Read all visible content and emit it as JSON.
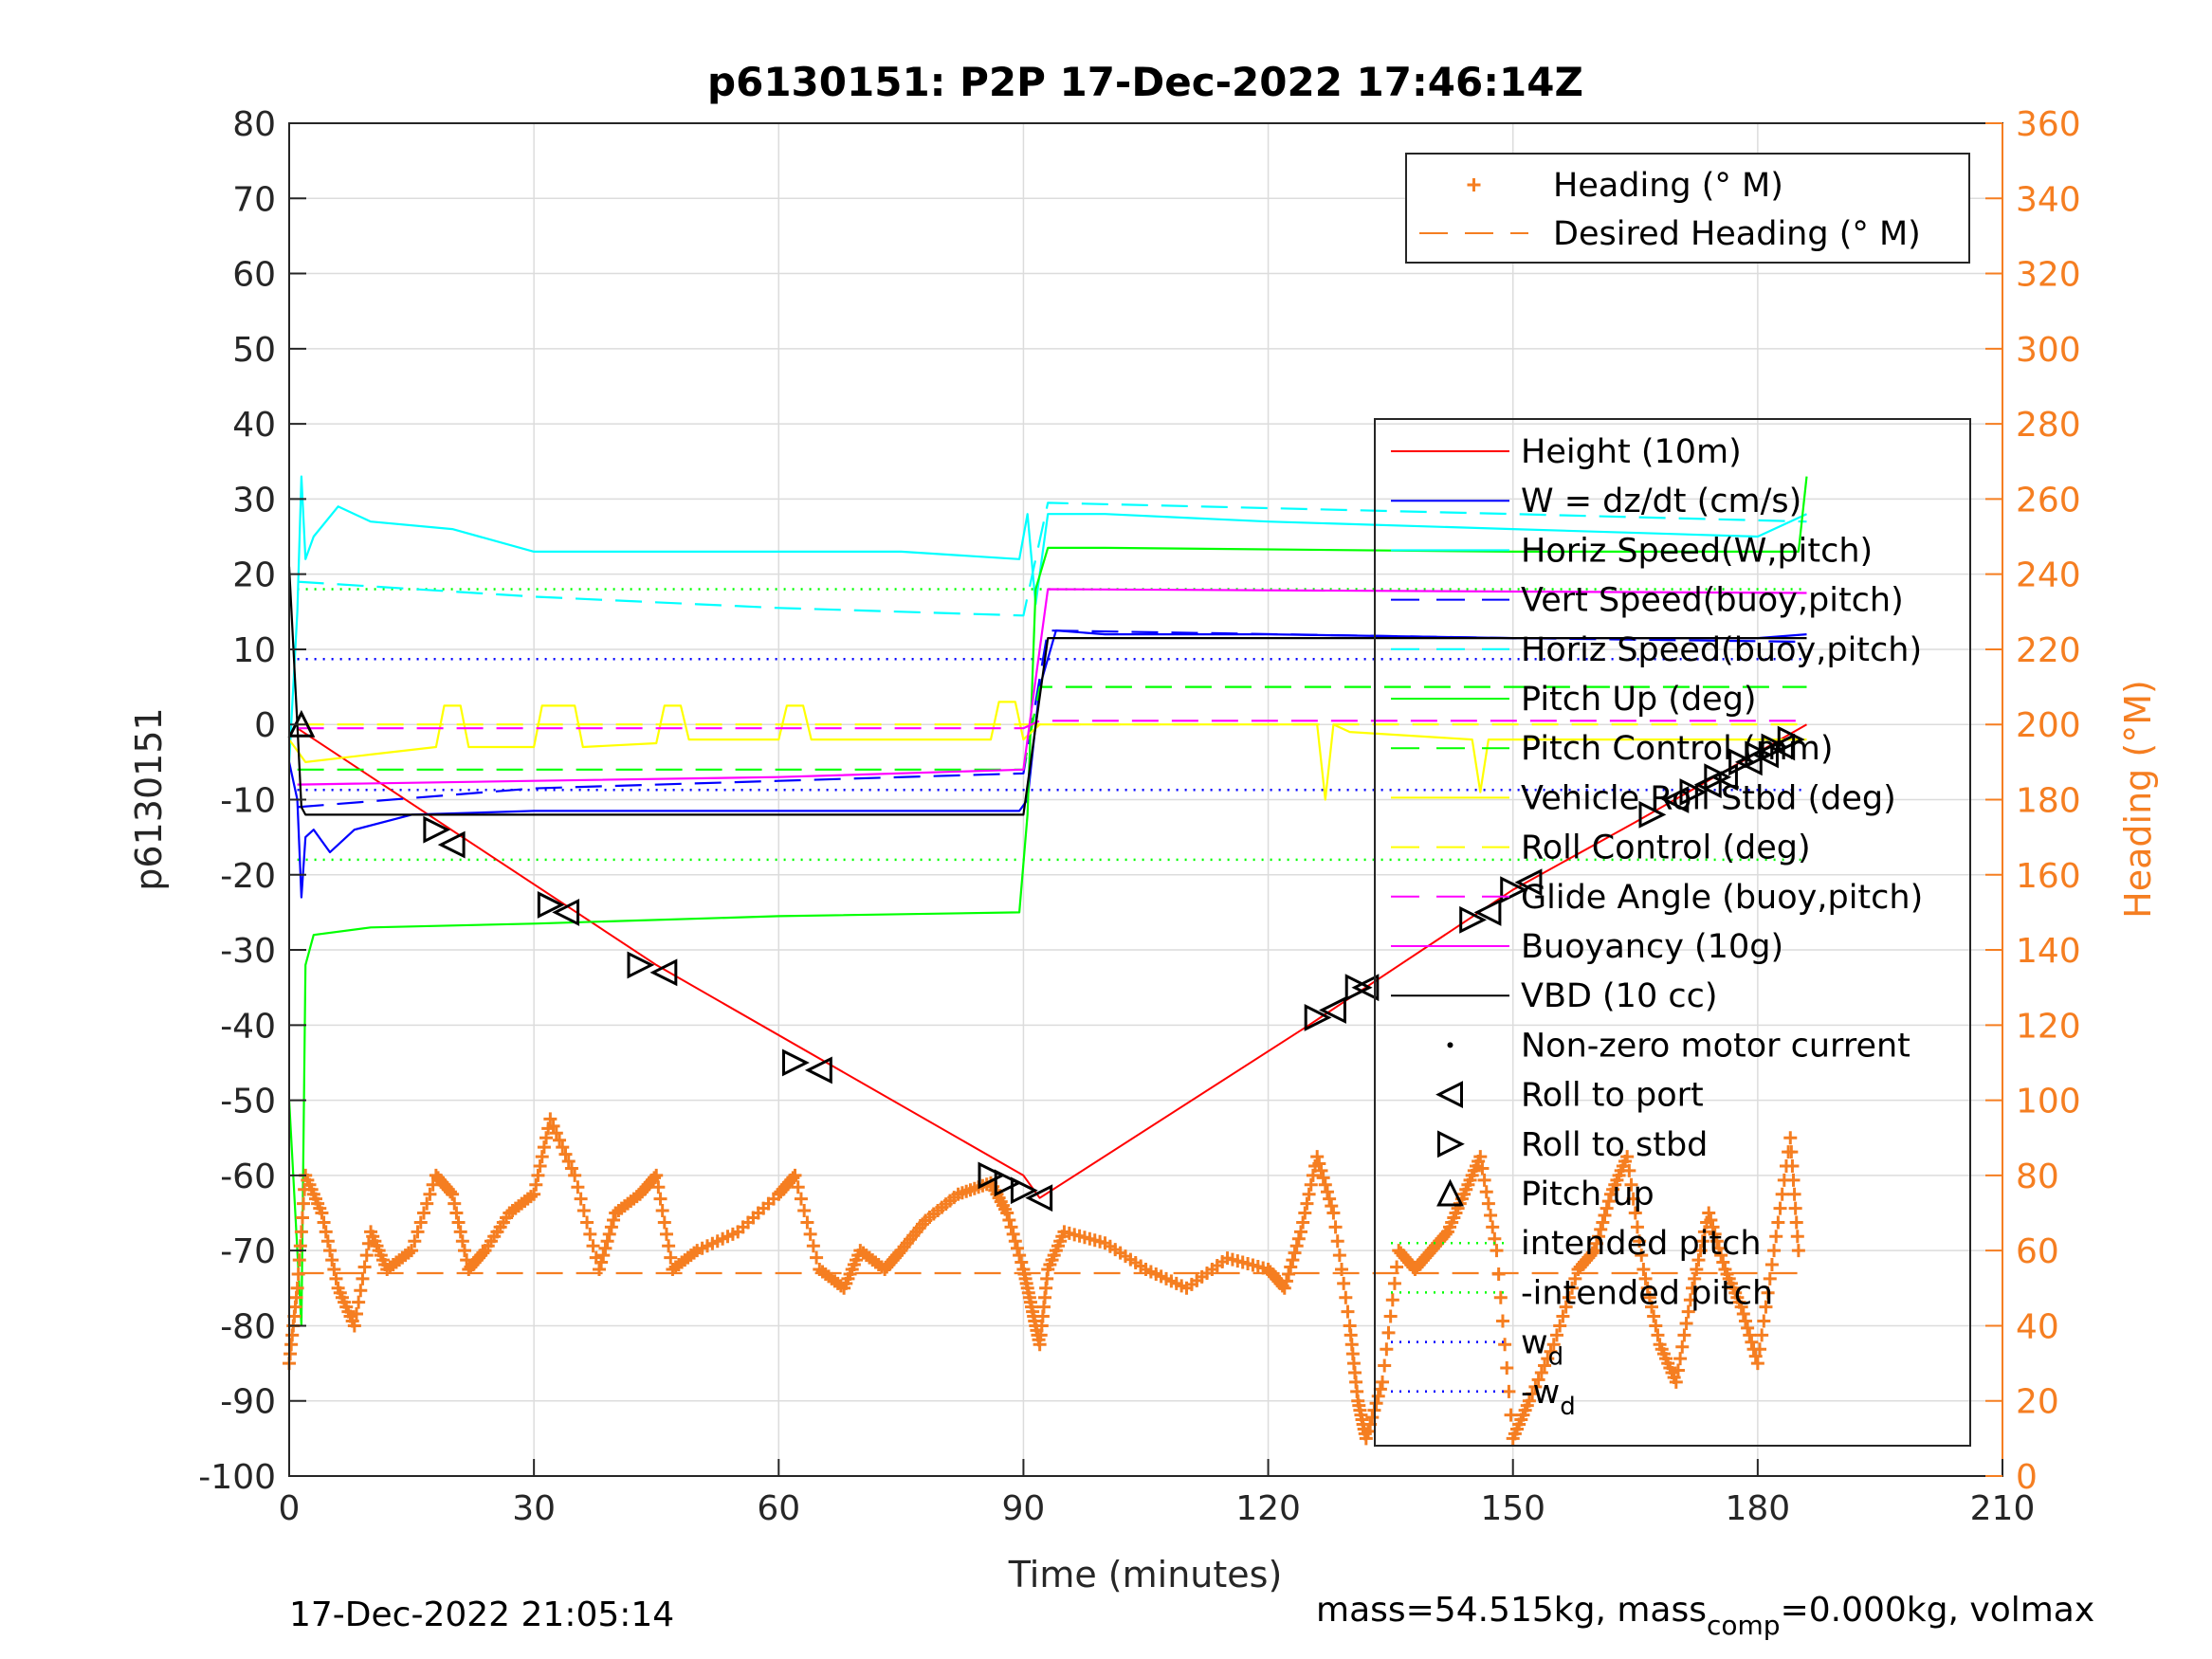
{
  "chart_data": {
    "type": "line",
    "title": "p6130151: P2P 17-Dec-2022 17:46:14Z",
    "xlabel": "Time (minutes)",
    "ylabel": "p6130151",
    "y2label": "Heading (°M)",
    "xlim": [
      0,
      210
    ],
    "ylim": [
      -100,
      80
    ],
    "y2lim": [
      0,
      360
    ],
    "xticks": [
      0,
      30,
      60,
      90,
      120,
      150,
      180,
      210
    ],
    "yticks": [
      -100,
      -90,
      -80,
      -70,
      -60,
      -50,
      -40,
      -30,
      -20,
      -10,
      0,
      10,
      20,
      30,
      40,
      50,
      60,
      70,
      80
    ],
    "y2ticks": [
      0,
      20,
      40,
      60,
      80,
      100,
      120,
      140,
      160,
      180,
      200,
      220,
      240,
      260,
      280,
      300,
      320,
      340,
      360
    ],
    "grid": true,
    "footer_left": "17-Dec-2022 21:05:14",
    "footer_right_a": "mass=54.515kg, mass",
    "footer_right_sub": "comp",
    "footer_right_b": "=0.000kg, volmax",
    "legend_top": [
      {
        "name": "Heading (° M)",
        "color": "#f57e21",
        "style": "plus"
      },
      {
        "name": "Desired Heading (° M)",
        "color": "#f57e21",
        "style": "dash"
      }
    ],
    "legend_main": [
      {
        "name": "Height (10m)",
        "color": "#ff0000",
        "style": "solid"
      },
      {
        "name": "W = dz/dt (cm/s)",
        "color": "#0000ff",
        "style": "solid"
      },
      {
        "name": "Horiz Speed(W,pitch)",
        "color": "#00ffff",
        "style": "solid"
      },
      {
        "name": "Vert Speed(buoy,pitch)",
        "color": "#0000ff",
        "style": "dash"
      },
      {
        "name": "Horiz Speed(buoy,pitch)",
        "color": "#00ffff",
        "style": "dash"
      },
      {
        "name": "Pitch Up (deg)",
        "color": "#00ff00",
        "style": "solid"
      },
      {
        "name": "Pitch Control (mm)",
        "color": "#00ff00",
        "style": "dash"
      },
      {
        "name": "Vehicle Roll Stbd (deg)",
        "color": "#ffff00",
        "style": "solid"
      },
      {
        "name": "Roll Control (deg)",
        "color": "#ffff00",
        "style": "dash"
      },
      {
        "name": "Glide Angle (buoy,pitch)",
        "color": "#ff00ff",
        "style": "dash"
      },
      {
        "name": "Buoyancy (10g)",
        "color": "#ff00ff",
        "style": "solid"
      },
      {
        "name": "VBD (10 cc)",
        "color": "#000000",
        "style": "solid"
      },
      {
        "name": "Non-zero motor current",
        "color": "#000000",
        "style": "dot"
      },
      {
        "name": "Roll to port",
        "color": "#000000",
        "style": "tri-left"
      },
      {
        "name": "Roll to stbd",
        "color": "#000000",
        "style": "tri-right"
      },
      {
        "name": "Pitch up",
        "color": "#000000",
        "style": "tri-up"
      },
      {
        "name": "intended pitch",
        "color": "#00ff00",
        "style": "dotted"
      },
      {
        "name": "-intended pitch",
        "color": "#00ff00",
        "style": "dotted"
      },
      {
        "name": "w",
        "sub": "d",
        "color": "#0000ff",
        "style": "dotted"
      },
      {
        "name": "-w",
        "sub": "d",
        "color": "#0000ff",
        "style": "dotted"
      }
    ],
    "series": [
      {
        "name": "Height (10m)",
        "axis": "left",
        "color": "#ff0000",
        "x": [
          1,
          45,
          90,
          92,
          125,
          150,
          165,
          186
        ],
        "y": [
          -0.5,
          -32,
          -60,
          -63,
          -40,
          -22,
          -13,
          0
        ]
      },
      {
        "name": "W = dz/dt (cm/s)",
        "axis": "left",
        "color": "#0000ff",
        "x": [
          0,
          1,
          1.5,
          2,
          3,
          5,
          8,
          15,
          30,
          60,
          89.5,
          90.5,
          92,
          94,
          100,
          120,
          150,
          180,
          186
        ],
        "y": [
          -5,
          -10,
          -23,
          -15,
          -14,
          -17,
          -14,
          -12,
          -11.5,
          -11.5,
          -11.5,
          -10,
          5,
          12.5,
          12,
          12,
          11.5,
          11.5,
          12
        ]
      },
      {
        "name": "Horiz Speed(W,pitch)",
        "axis": "left",
        "color": "#00ffff",
        "x": [
          0,
          1,
          1.5,
          2,
          3,
          6,
          10,
          20,
          30,
          45,
          60,
          75,
          89.5,
          90.5,
          91.5,
          93,
          100,
          120,
          150,
          180,
          186
        ],
        "y": [
          -5,
          15,
          33,
          22,
          25,
          29,
          27,
          26,
          23,
          23,
          23,
          23,
          22,
          28,
          16,
          28,
          28,
          27,
          26,
          25,
          28
        ]
      },
      {
        "name": "Vert Speed(buoy,pitch)",
        "axis": "left",
        "color": "#0000ff",
        "x": [
          1,
          30,
          60,
          90,
          93,
          150,
          186
        ],
        "y": [
          -11,
          -8.5,
          -7.5,
          -6.5,
          12.5,
          11.5,
          11
        ]
      },
      {
        "name": "Horiz Speed(buoy,pitch)",
        "axis": "left",
        "color": "#00ffff",
        "x": [
          1,
          30,
          60,
          90,
          93,
          150,
          186
        ],
        "y": [
          19,
          17,
          15.5,
          14.5,
          29.5,
          28,
          27
        ]
      },
      {
        "name": "Pitch Up (deg)",
        "axis": "left",
        "color": "#00ff00",
        "x": [
          0,
          1,
          1.5,
          2,
          3,
          10,
          30,
          60,
          89.5,
          90.5,
          91.5,
          93,
          100,
          150,
          185,
          186
        ],
        "y": [
          -50,
          -70,
          -80,
          -32,
          -28,
          -27,
          -26.5,
          -25.5,
          -25,
          -12,
          18,
          23.5,
          23.5,
          23,
          23,
          33
        ]
      },
      {
        "name": "Pitch Control (mm)",
        "axis": "left",
        "color": "#00ff00",
        "x": [
          1,
          90,
          92,
          186
        ],
        "y": [
          -6,
          -6,
          5,
          5
        ]
      },
      {
        "name": "Vehicle Roll Stbd (deg)",
        "axis": "left",
        "color": "#ffff00",
        "x": [
          0,
          2,
          10,
          18,
          19,
          21,
          22,
          30,
          31,
          35,
          36,
          45,
          46,
          48,
          49,
          60,
          61,
          63,
          64,
          86,
          87,
          89,
          90,
          92,
          100,
          126,
          127,
          128,
          130,
          145,
          146,
          147,
          186
        ],
        "y": [
          -2,
          -5,
          -4,
          -3,
          2.5,
          2.5,
          -3,
          -3,
          2.5,
          2.5,
          -3,
          -2.5,
          2.5,
          2.5,
          -2,
          -2,
          2.5,
          2.5,
          -2,
          -2,
          3,
          3,
          -2,
          0,
          0,
          0,
          -10,
          0,
          -1,
          -2,
          -9,
          -2,
          -2
        ]
      },
      {
        "name": "Roll Control (deg)",
        "axis": "left",
        "color": "#ffff00",
        "x": [
          1,
          186
        ],
        "y": [
          0,
          0
        ]
      },
      {
        "name": "Glide Angle (buoy,pitch)",
        "axis": "left",
        "color": "#ff00ff",
        "x": [
          1,
          90,
          92,
          186
        ],
        "y": [
          -0.5,
          -0.5,
          0.5,
          0.5
        ]
      },
      {
        "name": "Buoyancy (10g)",
        "axis": "left",
        "color": "#ff00ff",
        "x": [
          1,
          30,
          60,
          90,
          93,
          186
        ],
        "y": [
          -8,
          -7.5,
          -7,
          -6,
          18,
          17.5
        ]
      },
      {
        "name": "VBD (10 cc)",
        "axis": "left",
        "color": "#000000",
        "x": [
          0,
          1,
          1.5,
          2,
          90,
          93,
          186
        ],
        "y": [
          21,
          0,
          -11,
          -12,
          -12,
          11.5,
          11.5
        ]
      },
      {
        "name": "Heading (° M)",
        "axis": "right",
        "color": "#f57e21",
        "x": [
          0,
          1,
          2,
          4,
          6,
          8,
          10,
          12,
          15,
          18,
          20,
          22,
          24,
          27,
          30,
          32,
          35,
          38,
          40,
          43,
          45,
          47,
          50,
          55,
          60,
          62,
          65,
          68,
          70,
          73,
          75,
          78,
          82,
          86,
          88,
          90,
          91,
          92,
          93,
          95,
          100,
          105,
          110,
          115,
          120,
          122,
          124,
          126,
          128,
          130,
          131,
          132,
          134,
          136,
          138,
          140,
          142,
          144,
          146,
          148,
          150,
          152,
          155,
          158,
          160,
          162,
          164,
          166,
          168,
          170,
          172,
          174,
          176,
          178,
          180,
          182,
          184,
          185
        ],
        "y": [
          30,
          50,
          80,
          70,
          50,
          40,
          65,
          55,
          60,
          80,
          75,
          55,
          60,
          70,
          75,
          95,
          80,
          55,
          70,
          75,
          80,
          55,
          60,
          65,
          75,
          80,
          55,
          50,
          60,
          55,
          60,
          68,
          75,
          78,
          70,
          55,
          45,
          35,
          55,
          65,
          62,
          55,
          50,
          58,
          55,
          50,
          65,
          85,
          70,
          40,
          20,
          10,
          25,
          60,
          55,
          60,
          65,
          75,
          85,
          60,
          10,
          20,
          35,
          55,
          60,
          75,
          85,
          55,
          35,
          25,
          50,
          70,
          55,
          45,
          30,
          60,
          90,
          60
        ]
      },
      {
        "name": "Desired Heading (° M)",
        "axis": "right",
        "color": "#f57e21",
        "x": [
          1,
          186
        ],
        "y": [
          54,
          54
        ]
      }
    ],
    "markers": {
      "roll_to_port": [
        [
          20,
          -16
        ],
        [
          34,
          -25
        ],
        [
          46,
          -33
        ],
        [
          65,
          -46
        ],
        [
          92,
          -63
        ],
        [
          128,
          -38
        ],
        [
          132,
          -35
        ],
        [
          147,
          -25
        ],
        [
          152,
          -21
        ],
        [
          170,
          -10
        ],
        [
          174,
          -8
        ],
        [
          176,
          -7
        ],
        [
          179,
          -5
        ],
        [
          181,
          -4
        ],
        [
          183,
          -3
        ]
      ],
      "roll_to_stbd": [
        [
          18,
          -14
        ],
        [
          32,
          -24
        ],
        [
          43,
          -32
        ],
        [
          62,
          -45
        ],
        [
          86,
          -60
        ],
        [
          88,
          -61
        ],
        [
          90,
          -62
        ],
        [
          126,
          -39
        ],
        [
          131,
          -35
        ],
        [
          145,
          -26
        ],
        [
          150,
          -22
        ],
        [
          167,
          -12
        ],
        [
          172,
          -9
        ],
        [
          175,
          -7
        ],
        [
          178,
          -5
        ],
        [
          180,
          -4
        ],
        [
          182,
          -3
        ],
        [
          184,
          -2
        ]
      ],
      "pitch_up": [
        [
          1.5,
          0
        ]
      ]
    },
    "reference_lines": {
      "intended_pitch": 18,
      "neg_intended_pitch": -18,
      "w_d": 8.7,
      "neg_w_d": -8.7
    }
  }
}
